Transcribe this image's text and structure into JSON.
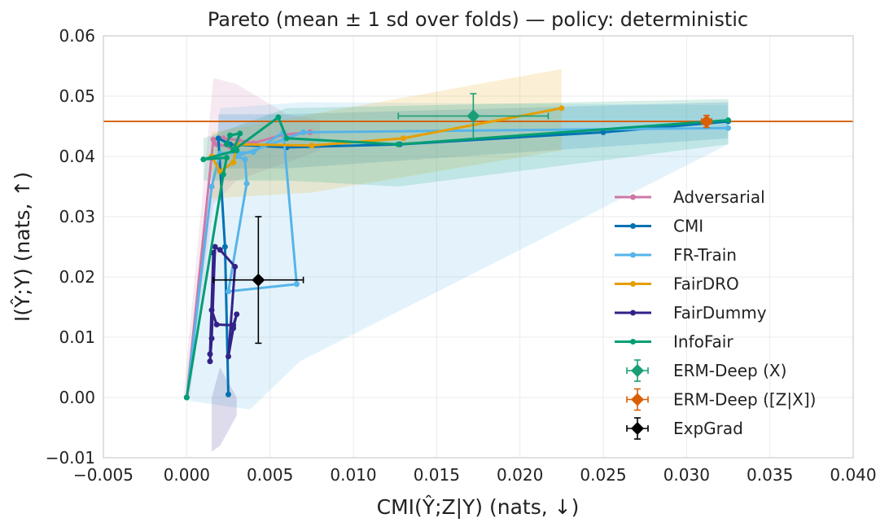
{
  "chart_data": {
    "type": "line",
    "title": "Pareto (mean ± 1 sd over folds) — policy: deterministic",
    "xlabel": "CMI(Ŷ;Z|Y) (nats, ↓)",
    "ylabel": "I(Ŷ;Y) (nats, ↑)",
    "xlim": [
      -0.005,
      0.04
    ],
    "ylim": [
      -0.01,
      0.06
    ],
    "xticks": [
      -0.005,
      0.0,
      0.005,
      0.01,
      0.015,
      0.02,
      0.025,
      0.03,
      0.035,
      0.04
    ],
    "yticks": [
      -0.01,
      0.0,
      0.01,
      0.02,
      0.03,
      0.04,
      0.05,
      0.06
    ],
    "xtick_labels": [
      "−0.005",
      "0.000",
      "0.005",
      "0.010",
      "0.015",
      "0.020",
      "0.025",
      "0.030",
      "0.035",
      "0.040"
    ],
    "ytick_labels": [
      "−0.01",
      "0.00",
      "0.01",
      "0.02",
      "0.03",
      "0.04",
      "0.05",
      "0.06"
    ],
    "grid": true,
    "legend_position": "right",
    "reference_line": {
      "y": 0.0458,
      "color": "#d55e00"
    },
    "series": [
      {
        "name": "Adversarial",
        "color": "#cc79a7",
        "points": [
          [
            0.0,
            0.0
          ],
          [
            0.0016,
            0.0428
          ],
          [
            0.0018,
            0.042
          ],
          [
            0.0026,
            0.0416
          ],
          [
            0.0022,
            0.043
          ],
          [
            0.0031,
            0.0427
          ],
          [
            0.004,
            0.0422
          ],
          [
            0.0058,
            0.0436
          ],
          [
            0.0074,
            0.044
          ]
        ],
        "band": {
          "upper": [
            [
              -0.0002,
              0.0
            ],
            [
              0.0016,
              0.053
            ],
            [
              0.003,
              0.052
            ],
            [
              0.006,
              0.047
            ],
            [
              0.008,
              0.046
            ]
          ],
          "lower": [
            [
              0.008,
              0.041
            ],
            [
              0.006,
              0.039
            ],
            [
              0.003,
              0.036
            ],
            [
              0.0016,
              0.032
            ],
            [
              0.0002,
              0.0
            ]
          ]
        }
      },
      {
        "name": "CMI",
        "color": "#0072b2",
        "points": [
          [
            0.0025,
            0.0005
          ],
          [
            0.0023,
            0.025
          ],
          [
            0.0019,
            0.043
          ],
          [
            0.0026,
            0.042
          ],
          [
            0.006,
            0.0415
          ],
          [
            0.0128,
            0.042
          ],
          [
            0.025,
            0.044
          ],
          [
            0.0325,
            0.0458
          ]
        ],
        "band": {
          "upper": [
            [
              0.0019,
              0.047
            ],
            [
              0.006,
              0.047
            ],
            [
              0.0325,
              0.049
            ]
          ],
          "lower": [
            [
              0.0325,
              0.043
            ],
            [
              0.006,
              0.038
            ],
            [
              0.0019,
              0.038
            ]
          ]
        }
      },
      {
        "name": "FR-Train",
        "color": "#56b4e9",
        "points": [
          [
            0.0,
            0.0
          ],
          [
            0.0015,
            0.035
          ],
          [
            0.002,
            0.0405
          ],
          [
            0.004,
            0.0407
          ],
          [
            0.0058,
            0.044
          ],
          [
            0.0066,
            0.0188
          ],
          [
            0.0025,
            0.0176
          ],
          [
            0.0036,
            0.0355
          ],
          [
            0.0035,
            0.0395
          ],
          [
            0.003,
            0.04
          ],
          [
            0.007,
            0.044
          ],
          [
            0.0325,
            0.0447
          ]
        ],
        "band": {
          "upper": [
            [
              0.0,
              0.0005
            ],
            [
              0.002,
              0.048
            ],
            [
              0.007,
              0.049
            ],
            [
              0.0325,
              0.0485
            ]
          ],
          "lower": [
            [
              0.0325,
              0.042
            ],
            [
              0.0068,
              0.006
            ],
            [
              0.0038,
              -0.002
            ],
            [
              0.0,
              -0.0005
            ]
          ]
        }
      },
      {
        "name": "FairDRO",
        "color": "#e69f00",
        "points": [
          [
            0.0015,
            0.04
          ],
          [
            0.002,
            0.0375
          ],
          [
            0.0028,
            0.039
          ],
          [
            0.003,
            0.042
          ],
          [
            0.0075,
            0.0418
          ],
          [
            0.013,
            0.043
          ],
          [
            0.0225,
            0.048
          ]
        ],
        "band": {
          "upper": [
            [
              0.0015,
              0.044
            ],
            [
              0.0075,
              0.047
            ],
            [
              0.0225,
              0.0545
            ]
          ],
          "lower": [
            [
              0.0225,
              0.041
            ],
            [
              0.0075,
              0.034
            ],
            [
              0.0015,
              0.033
            ]
          ]
        }
      },
      {
        "name": "FairDummy",
        "color": "#332288",
        "points": [
          [
            0.0014,
            0.006
          ],
          [
            0.0015,
            0.0098
          ],
          [
            0.0017,
            0.025
          ],
          [
            0.002,
            0.0245
          ],
          [
            0.0029,
            0.0217
          ],
          [
            0.0025,
            0.0068
          ],
          [
            0.0028,
            0.0115
          ],
          [
            0.003,
            0.0138
          ],
          [
            0.0028,
            0.012
          ],
          [
            0.0018,
            0.0121
          ],
          [
            0.0015,
            0.0145
          ],
          [
            0.0016,
            0.024
          ],
          [
            0.0014,
            0.0072
          ]
        ],
        "band": {
          "upper": [
            [
              0.0015,
              0.0
            ],
            [
              0.002,
              0.005
            ],
            [
              0.003,
              0.0
            ]
          ],
          "lower": [
            [
              0.003,
              -0.003
            ],
            [
              0.002,
              -0.008
            ],
            [
              0.0015,
              -0.009
            ]
          ]
        }
      },
      {
        "name": "InfoFair",
        "color": "#009e73",
        "points": [
          [
            0.0,
            0.0
          ],
          [
            0.0022,
            0.037
          ],
          [
            0.0024,
            0.0398
          ],
          [
            0.001,
            0.0395
          ],
          [
            0.003,
            0.041
          ],
          [
            0.0024,
            0.042
          ],
          [
            0.0026,
            0.0435
          ],
          [
            0.0032,
            0.0438
          ],
          [
            0.0028,
            0.041
          ],
          [
            0.0055,
            0.0465
          ],
          [
            0.006,
            0.043
          ],
          [
            0.0127,
            0.042
          ],
          [
            0.0325,
            0.046
          ]
        ],
        "band": {
          "upper": [
            [
              0.001,
              0.043
            ],
            [
              0.006,
              0.048
            ],
            [
              0.0325,
              0.0495
            ]
          ],
          "lower": [
            [
              0.0325,
              0.042
            ],
            [
              0.0127,
              0.035
            ],
            [
              0.006,
              0.036
            ],
            [
              0.001,
              0.036
            ]
          ]
        }
      }
    ],
    "error_points": [
      {
        "name": "ERM-Deep (X)",
        "color": "#1a9e77",
        "marker": "diamond",
        "x": 0.0172,
        "y": 0.0467,
        "xerr": 0.0045,
        "yerr": 0.0037
      },
      {
        "name": "ERM-Deep ([Z|X])",
        "color": "#d95f02",
        "marker": "diamond",
        "x": 0.0312,
        "y": 0.0458,
        "xerr": 0.0003,
        "yerr": 0.001
      },
      {
        "name": "ExpGrad",
        "color": "#000000",
        "marker": "diamond",
        "x": 0.0043,
        "y": 0.0195,
        "xerr": 0.0027,
        "yerr": 0.0105
      }
    ]
  }
}
